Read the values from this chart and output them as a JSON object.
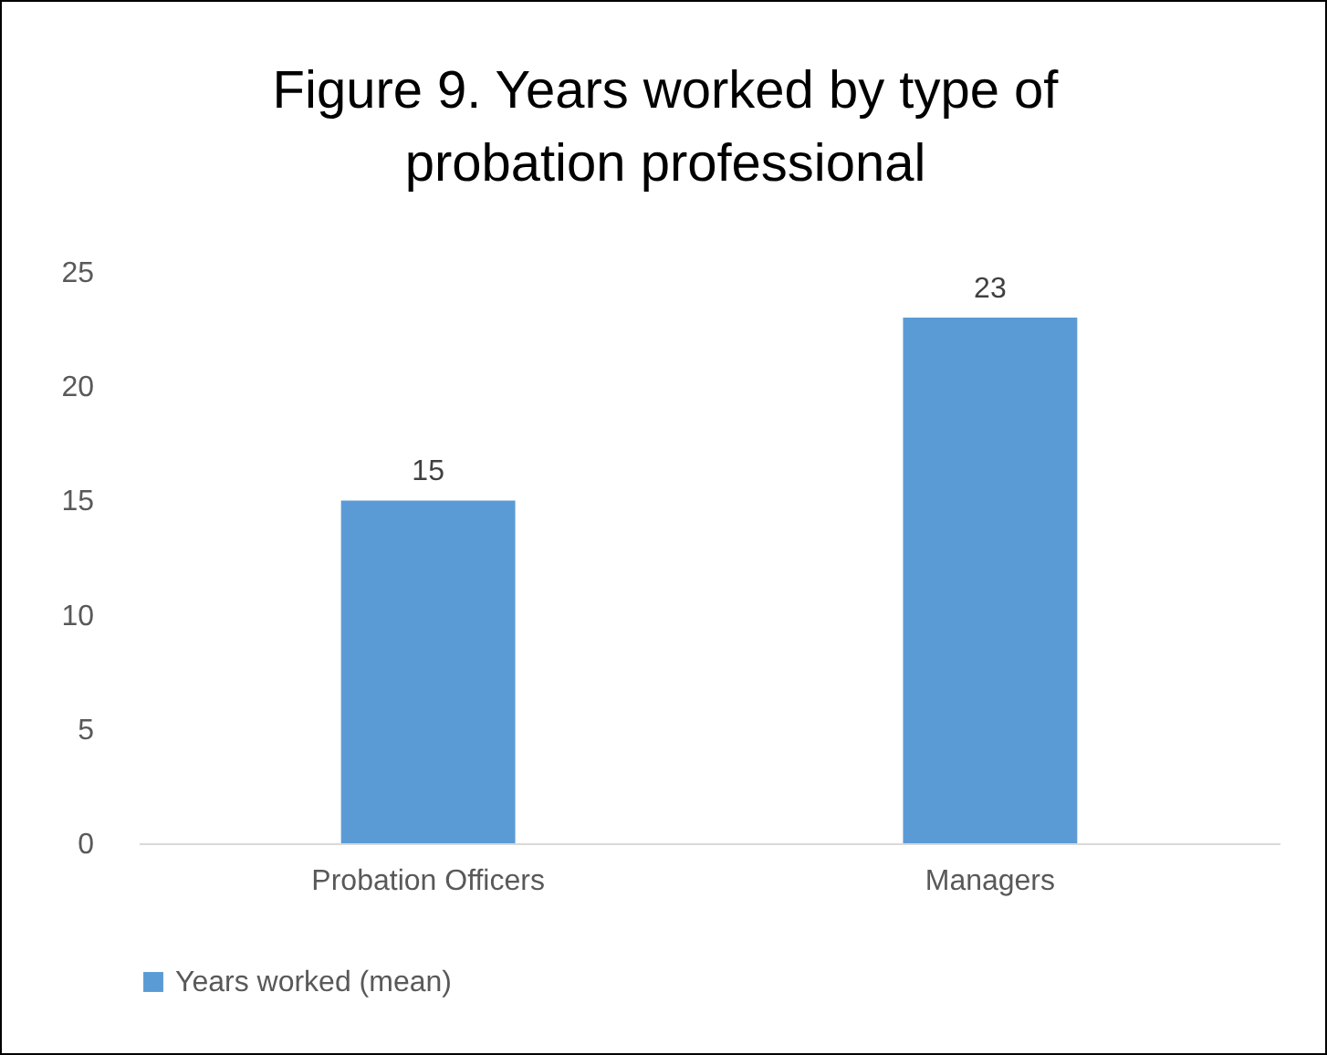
{
  "chart_data": {
    "type": "bar",
    "title": "Figure 9. Years worked by type of probation professional",
    "categories": [
      "Probation Officers",
      "Managers"
    ],
    "series": [
      {
        "name": "Years worked (mean)",
        "color": "#5b9bd5",
        "values": [
          15,
          23
        ]
      }
    ],
    "ylim": [
      0,
      25
    ],
    "yticks": [
      0,
      5,
      10,
      15,
      20,
      25
    ],
    "grid": false,
    "legend": "bottom",
    "data_labels": true
  }
}
